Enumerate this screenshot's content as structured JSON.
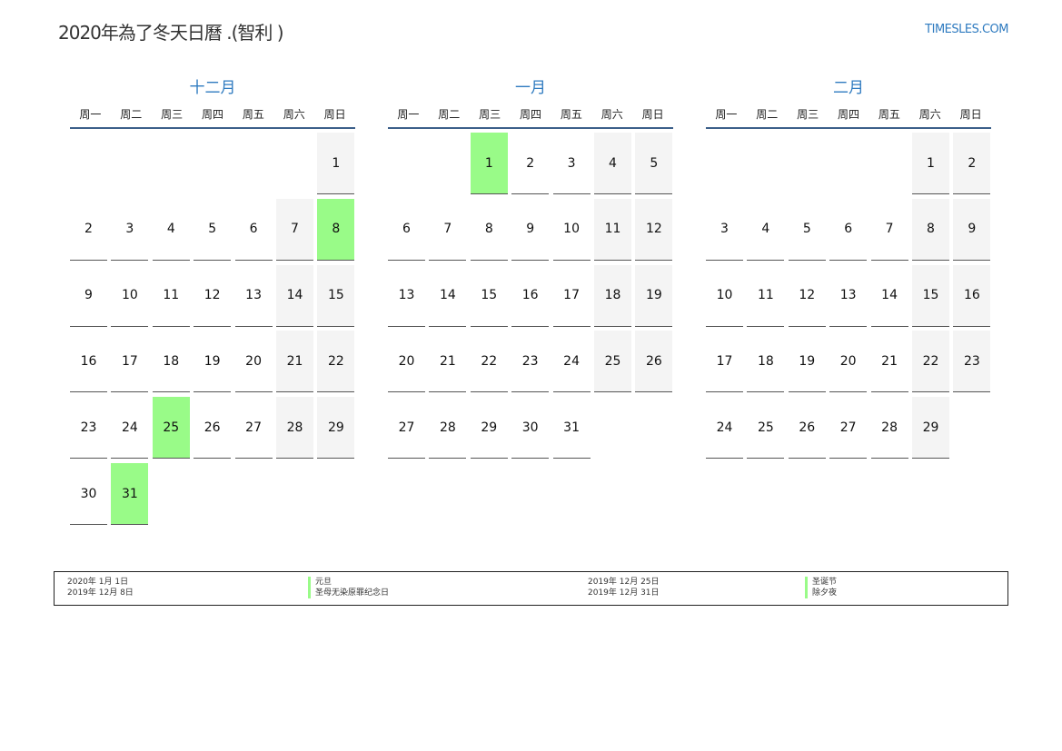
{
  "title": "2020年為了冬天日曆 .(智利 )",
  "site": "TIMESLES.COM",
  "colors": {
    "accent": "#2f7bc0",
    "holiday": "#99fb88",
    "weekend": "#f4f4f4",
    "rule": "#3c5f8a"
  },
  "weekdays": [
    "周一",
    "周二",
    "周三",
    "周四",
    "周五",
    "周六",
    "周日"
  ],
  "months": [
    {
      "name": "十二月",
      "weeks": [
        [
          null,
          null,
          null,
          null,
          null,
          null,
          1
        ],
        [
          2,
          3,
          4,
          5,
          6,
          7,
          8
        ],
        [
          9,
          10,
          11,
          12,
          13,
          14,
          15
        ],
        [
          16,
          17,
          18,
          19,
          20,
          21,
          22
        ],
        [
          23,
          24,
          25,
          26,
          27,
          28,
          29
        ],
        [
          30,
          31
        ]
      ],
      "holidays": [
        8,
        25,
        31
      ]
    },
    {
      "name": "一月",
      "weeks": [
        [
          null,
          null,
          1,
          2,
          3,
          4,
          5
        ],
        [
          6,
          7,
          8,
          9,
          10,
          11,
          12
        ],
        [
          13,
          14,
          15,
          16,
          17,
          18,
          19
        ],
        [
          20,
          21,
          22,
          23,
          24,
          25,
          26
        ],
        [
          27,
          28,
          29,
          30,
          31
        ]
      ],
      "holidays": [
        1
      ]
    },
    {
      "name": "二月",
      "weeks": [
        [
          null,
          null,
          null,
          null,
          null,
          1,
          2
        ],
        [
          3,
          4,
          5,
          6,
          7,
          8,
          9
        ],
        [
          10,
          11,
          12,
          13,
          14,
          15,
          16
        ],
        [
          17,
          18,
          19,
          20,
          21,
          22,
          23
        ],
        [
          24,
          25,
          26,
          27,
          28,
          29
        ]
      ],
      "holidays": []
    }
  ],
  "legend": [
    {
      "date": "2020年 1月 1日",
      "name": "元旦"
    },
    {
      "date": "2019年 12月 8日",
      "name": "圣母无染原罪纪念日"
    },
    {
      "date": "2019年 12月 25日",
      "name": "圣诞节"
    },
    {
      "date": "2019年 12月 31日",
      "name": "除夕夜"
    }
  ]
}
